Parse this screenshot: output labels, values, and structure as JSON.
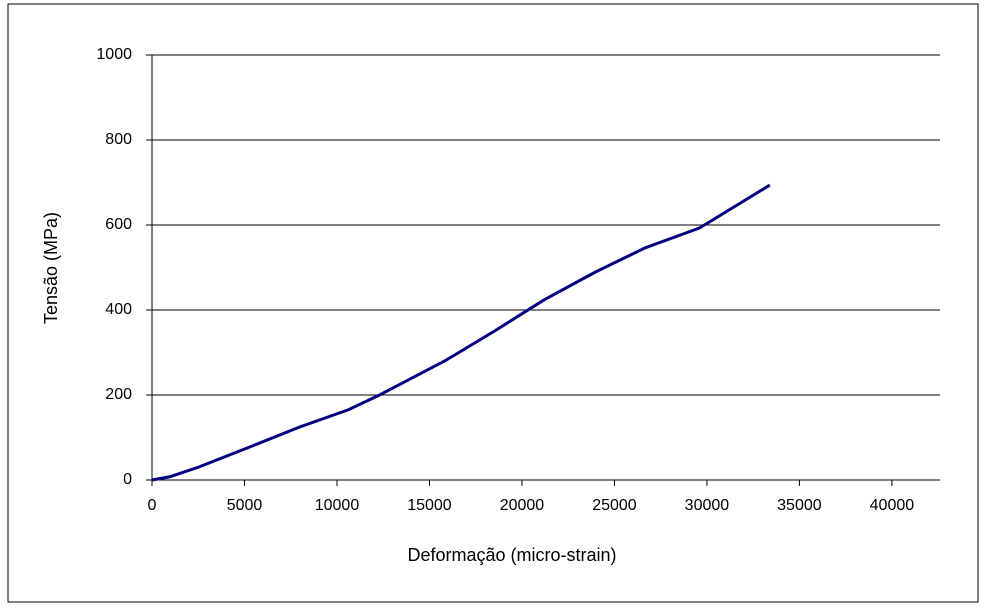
{
  "chart_data": {
    "type": "line",
    "x_label": "Deformação (micro-strain)",
    "y_label": "Tensão (MPa)",
    "x": [
      0,
      1000,
      2500,
      5300,
      8000,
      10600,
      12300,
      15900,
      18500,
      21200,
      24000,
      26650,
      29600,
      33400
    ],
    "series": [
      {
        "name": "Tensão",
        "color": "#000080",
        "values": [
          0,
          8,
          30,
          78,
          125,
          165,
          200,
          282,
          350,
          424,
          490,
          546,
          593,
          694
        ]
      }
    ],
    "xlim": [
      0,
      42600
    ],
    "xticks": [
      0,
      5000,
      10000,
      15000,
      20000,
      25000,
      30000,
      35000,
      40000
    ],
    "ylim": [
      0,
      1000
    ],
    "yticks": [
      0,
      200,
      400,
      600,
      800,
      1000
    ],
    "grid": true
  }
}
